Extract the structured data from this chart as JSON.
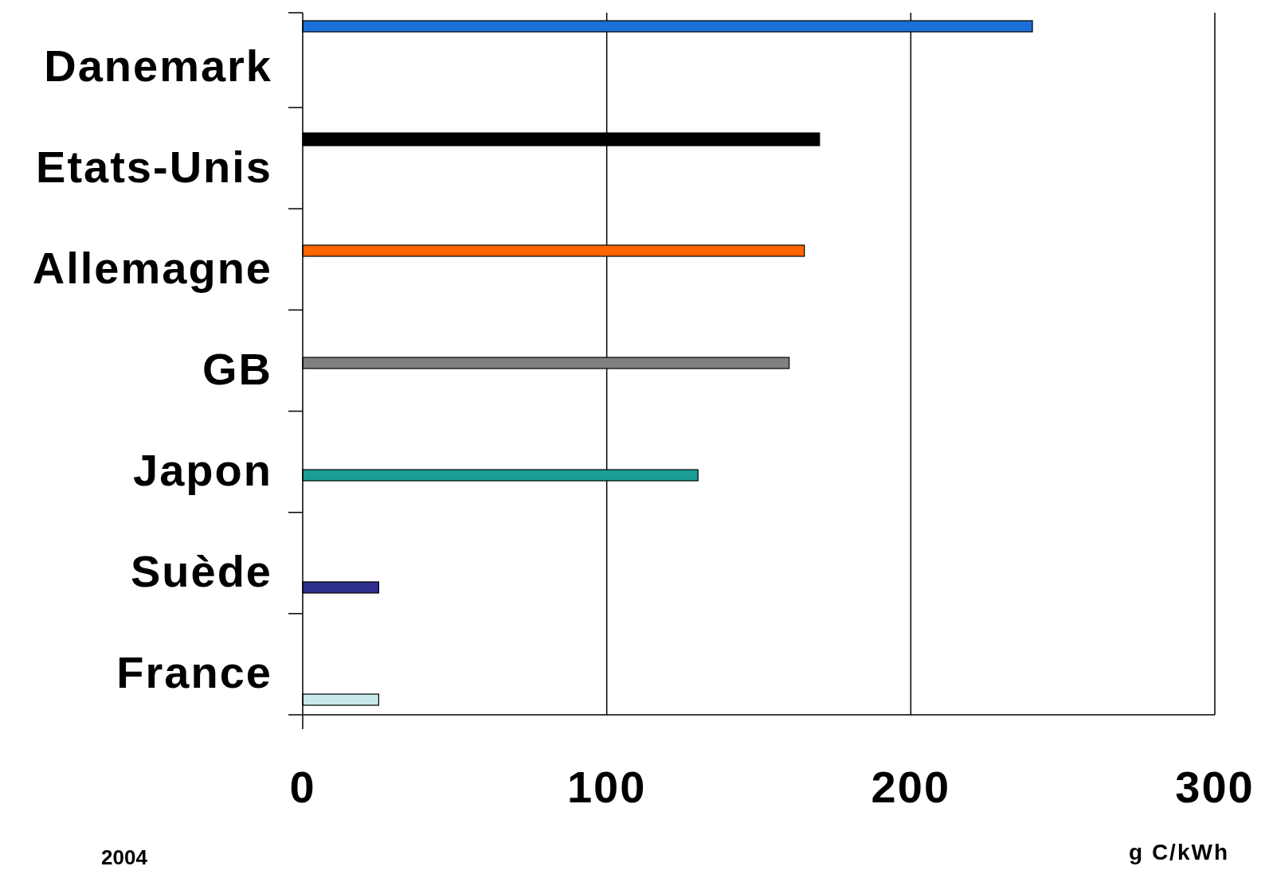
{
  "chart_data": {
    "type": "bar",
    "orientation": "horizontal",
    "categories": [
      "Danemark",
      "Etats-Unis",
      "Allemagne",
      "GB",
      "Japon",
      "Suède",
      "France"
    ],
    "values": [
      240,
      170,
      165,
      160,
      130,
      25,
      25
    ],
    "colors": [
      "#1a6fd8",
      "#000000",
      "#ff6600",
      "#808080",
      "#1a9e96",
      "#2e2e8e",
      "#c8e8ec"
    ],
    "xlim": [
      0,
      300
    ],
    "xticks": [
      0,
      100,
      200,
      300
    ],
    "grid": "x",
    "xlabel": "g C/kWh",
    "annotations": [
      "2004"
    ]
  }
}
